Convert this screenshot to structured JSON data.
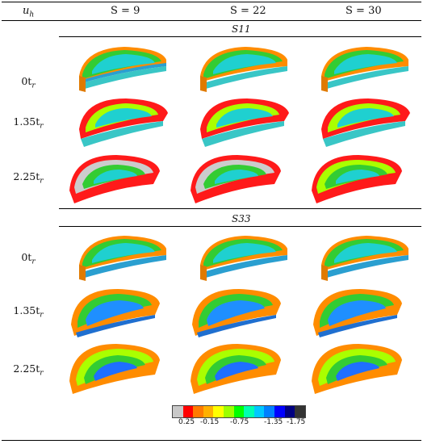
{
  "header": {
    "col0": "u",
    "col0_sub": "h",
    "col1": "S = 9",
    "col2": "S = 22",
    "col3": "S = 30"
  },
  "sections": [
    {
      "label": "S11",
      "rows": [
        "0t",
        "1.35t",
        "2.25t"
      ],
      "row_sub": "r"
    },
    {
      "label": "S33",
      "rows": [
        "0t",
        "1.35t",
        "2.25t"
      ],
      "row_sub": "r"
    }
  ],
  "legend": {
    "colors": [
      "#c8c8c8",
      "#ff0000",
      "#ff7a00",
      "#ffb000",
      "#ffff00",
      "#9cff00",
      "#00ff00",
      "#00ffb0",
      "#00c8ff",
      "#0080ff",
      "#0000ff",
      "#000080",
      "#333333"
    ],
    "ticks": [
      "0.25",
      "-0.15",
      "-0.75",
      "-1.35",
      "-1.75"
    ]
  }
}
